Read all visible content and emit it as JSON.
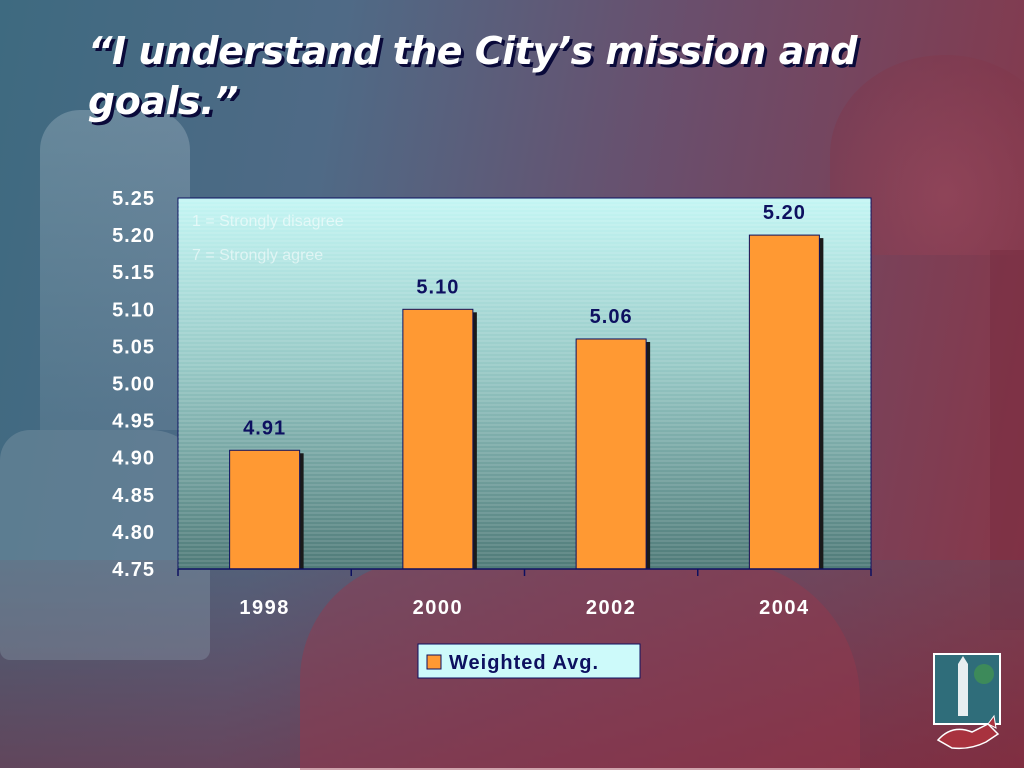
{
  "slide": {
    "title": "“I understand the City’s mission and goals.”",
    "scale_note_1": "1 = Strongly disagree",
    "scale_note_2": "7 = Strongly agree"
  },
  "chart_data": {
    "type": "bar",
    "title": "",
    "xlabel": "",
    "ylabel": "",
    "categories": [
      "1998",
      "2000",
      "2002",
      "2004"
    ],
    "series": [
      {
        "name": "Weighted Avg.",
        "values": [
          4.91,
          5.1,
          5.06,
          5.2
        ]
      }
    ],
    "data_labels": [
      "4.91",
      "5.10",
      "5.06",
      "5.20"
    ],
    "ylim": [
      4.75,
      5.25
    ],
    "y_ticks": [
      "4.75",
      "4.80",
      "4.85",
      "4.90",
      "4.95",
      "5.00",
      "5.05",
      "5.10",
      "5.15",
      "5.20",
      "5.25"
    ],
    "grid": false,
    "legend": "bottom-center",
    "colors": {
      "bar": "#ff9933",
      "bar_shadow": "#1a1a1a",
      "plot_top": "#c4f6f4",
      "plot_bottom": "#4f7a78",
      "tick_text": "#ffffff",
      "label_text": "#0d1060"
    }
  }
}
